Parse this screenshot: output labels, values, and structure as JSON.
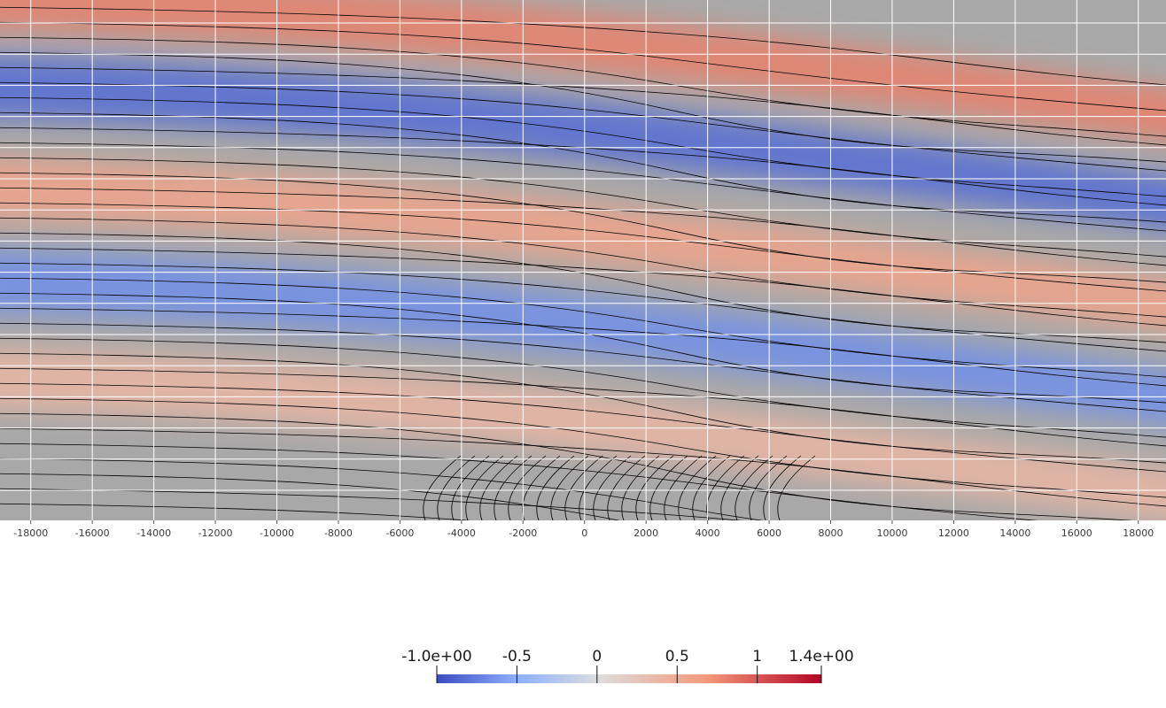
{
  "chart_data": {
    "type": "heatmap",
    "title": "",
    "xlabel": "",
    "ylabel": "",
    "x_ticks": [
      -18000,
      -16000,
      -14000,
      -12000,
      -10000,
      -8000,
      -6000,
      -4000,
      -2000,
      0,
      2000,
      4000,
      6000,
      8000,
      10000,
      12000,
      14000,
      16000,
      18000
    ],
    "x_tick_labels": [
      "-18000",
      "-16000",
      "-14000",
      "-12000",
      "-10000",
      "-8000",
      "-6000",
      "-4000",
      "-2000",
      "0",
      "2000",
      "4000",
      "6000",
      "8000",
      "10000",
      "12000",
      "14000",
      "16000",
      "18000"
    ],
    "x_range": [
      -19000,
      18900
    ],
    "grid": true,
    "contour_lines": true,
    "colormap": "cool to warm",
    "colormap_stops": [
      "#3b4cc0",
      "#8db0fe",
      "#dddddd",
      "#f49a7b",
      "#b40426"
    ],
    "color_range": [
      -1.0,
      1.4
    ],
    "colorbar": {
      "ticks": [
        -1.0,
        -0.5,
        0,
        0.5,
        1,
        1.4
      ],
      "labels": [
        "-1.0e+00",
        "-0.5",
        "0",
        "0.5",
        "1",
        "1.4e+00"
      ],
      "orientation": "horizontal",
      "placement": "bottom-center"
    },
    "field_bands": [
      {
        "value": 0.9,
        "description_slope": "descending to the right"
      },
      {
        "value": -0.8
      },
      {
        "value": 0.7
      },
      {
        "value": -0.6
      },
      {
        "value": 0.55
      }
    ]
  }
}
